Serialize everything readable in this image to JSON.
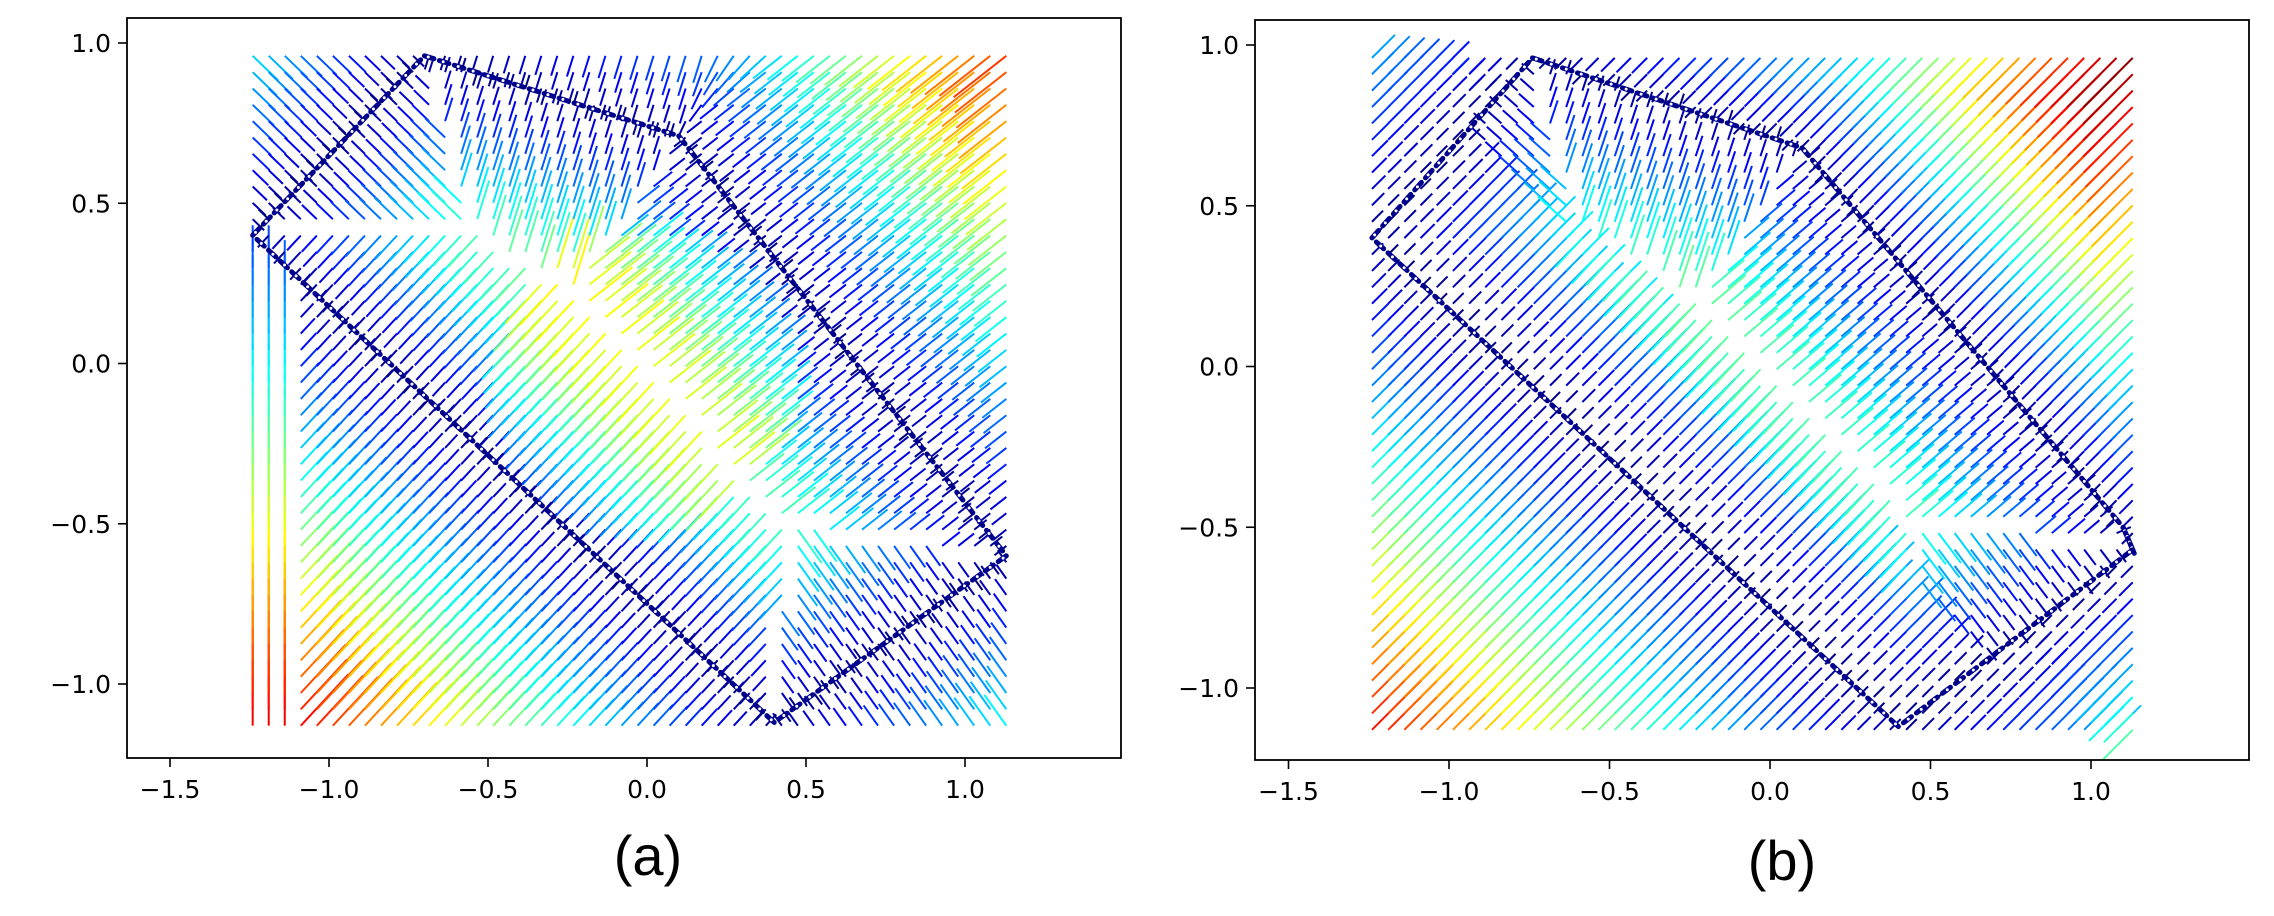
{
  "figure": {
    "panels": [
      {
        "caption": "(a)"
      },
      {
        "caption": "(b)"
      }
    ]
  },
  "colormap": [
    "#00007f",
    "#0000ff",
    "#007fff",
    "#00ffff",
    "#7fff7f",
    "#ffff00",
    "#ff7f00",
    "#ff0000",
    "#7f0000"
  ],
  "chart_data": [
    {
      "type": "quiver",
      "panel": "(a)",
      "title": "",
      "xlabel": "",
      "ylabel": "",
      "xlim": [
        -1.6,
        1.5
      ],
      "ylim": [
        -1.23,
        1.07
      ],
      "xticks": [
        -1.5,
        -1.0,
        -0.5,
        0.0,
        0.5,
        1.0
      ],
      "xtick_labels": [
        "−1.5",
        "−1.0",
        "−0.5",
        "0.0",
        "0.5",
        "1.0"
      ],
      "yticks": [
        1.0,
        0.5,
        0.0,
        -0.5,
        -1.0
      ],
      "ytick_labels": [
        "1.0",
        "0.5",
        "0.0",
        "−0.5",
        "−1.0"
      ],
      "grid": false,
      "field_domain": {
        "x": [
          -1.24,
          1.13
        ],
        "y": [
          -1.13,
          0.96
        ]
      },
      "boundary_polygon": [
        [
          -0.7,
          0.96
        ],
        [
          0.1,
          0.71
        ],
        [
          1.13,
          -0.6
        ],
        [
          0.4,
          -1.12
        ],
        [
          -1.24,
          0.4
        ]
      ],
      "color_scale": "jet",
      "description_values": {
        "high_magnitude_regions": [
          "bottom-left strip below x=-1.1 (vertical lines)",
          "top-right corner",
          "center rays"
        ]
      }
    },
    {
      "type": "quiver",
      "panel": "(b)",
      "title": "",
      "xlabel": "",
      "ylabel": "",
      "xlim": [
        -1.6,
        1.5
      ],
      "ylim": [
        -1.23,
        1.07
      ],
      "xticks": [
        -1.5,
        -1.0,
        -0.5,
        0.0,
        0.5,
        1.0
      ],
      "xtick_labels": [
        "−1.5",
        "−1.0",
        "−0.5",
        "0.0",
        "0.5",
        "1.0"
      ],
      "yticks": [
        1.0,
        0.5,
        0.0,
        -0.5,
        -1.0
      ],
      "ytick_labels": [
        "1.0",
        "0.5",
        "0.0",
        "−0.5",
        "−1.0"
      ],
      "grid": false,
      "field_domain": {
        "x": [
          -1.24,
          1.13
        ],
        "y": [
          -1.13,
          0.96
        ]
      },
      "boundary_polygon": [
        [
          -0.74,
          0.96
        ],
        [
          0.1,
          0.68
        ],
        [
          1.1,
          -0.5
        ],
        [
          1.13,
          -0.57
        ],
        [
          0.4,
          -1.12
        ],
        [
          -1.24,
          0.4
        ]
      ],
      "color_scale": "jet",
      "description_values": {
        "high_magnitude_regions": [
          "bottom-left corner (diagonal lines)",
          "upper-right band outside polygon"
        ]
      }
    }
  ]
}
